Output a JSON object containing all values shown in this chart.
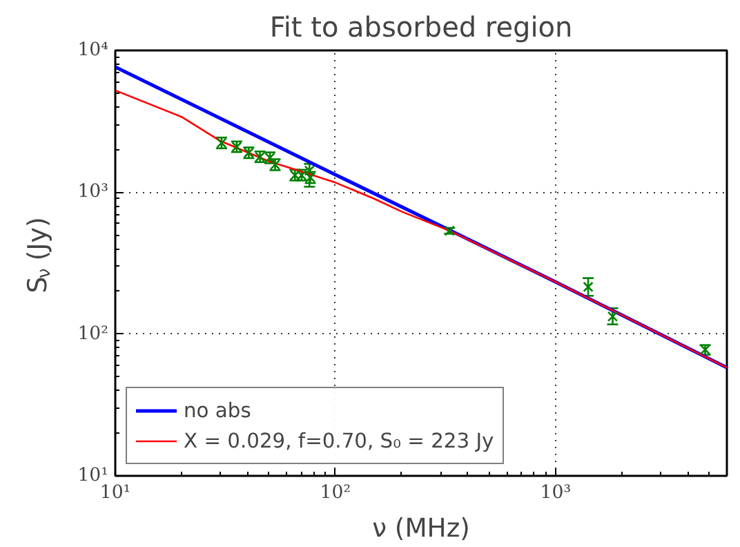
{
  "chart_data": {
    "type": "line",
    "title": "Fit to absorbed region",
    "xlabel": "ν (MHz)",
    "ylabel": "S$_{ν}$ (Jy)",
    "log": "xy",
    "grid": true,
    "legend": "bottom left",
    "line_style": "solid",
    "xlim": [
      10,
      6000
    ],
    "ylim": [
      10,
      10000
    ],
    "xticks": [
      {
        "value": 10,
        "label": "10¹"
      },
      {
        "value": 100,
        "label": "10²"
      },
      {
        "value": 1000,
        "label": "10³"
      }
    ],
    "yticks": [
      {
        "value": 10,
        "label": "10¹"
      },
      {
        "value": 100,
        "label": "10²"
      },
      {
        "value": 1000,
        "label": "10³"
      },
      {
        "value": 10000,
        "label": "10⁴"
      }
    ],
    "series": [
      {
        "name": "no abs",
        "color": "#0000ff",
        "x": [
          10,
          100,
          330,
          1000,
          6000
        ],
        "values": [
          7640,
          1330,
          540,
          233,
          58
        ]
      },
      {
        "name": "X = 0.029, f=0.70, S₀ = 223 Jy",
        "color": "#ff0000",
        "x": [
          10,
          20,
          30,
          50,
          70,
          100,
          150,
          200,
          330,
          1000,
          6000
        ],
        "values": [
          5220,
          3400,
          2300,
          1650,
          1400,
          1170,
          900,
          730,
          535,
          233,
          58
        ]
      },
      {
        "type": "scatter",
        "marker": "cross",
        "color": "#008000",
        "x": [
          30.4,
          35.6,
          40.4,
          45.4,
          50.4,
          53.2,
          65.5,
          70.2,
          76.2,
          76.9,
          330,
          1406,
          1816,
          4780
        ],
        "values": [
          2225,
          2090,
          1900,
          1775,
          1750,
          1563,
          1318,
          1318,
          1420,
          1270,
          535,
          215,
          133,
          77.6
        ],
        "errors": [
          [
            2040,
            2430
          ],
          [
            1920,
            2280
          ],
          [
            1740,
            2070
          ],
          [
            1630,
            1940
          ],
          [
            1600,
            1910
          ],
          [
            1430,
            1710
          ],
          [
            1210,
            1440
          ],
          [
            1210,
            1440
          ],
          [
            1094,
            1585
          ],
          [
            1160,
            1390
          ],
          [
            510,
            560
          ],
          [
            186,
            248
          ],
          [
            117,
            152
          ],
          [
            71.5,
            83.6
          ]
        ]
      }
    ]
  }
}
